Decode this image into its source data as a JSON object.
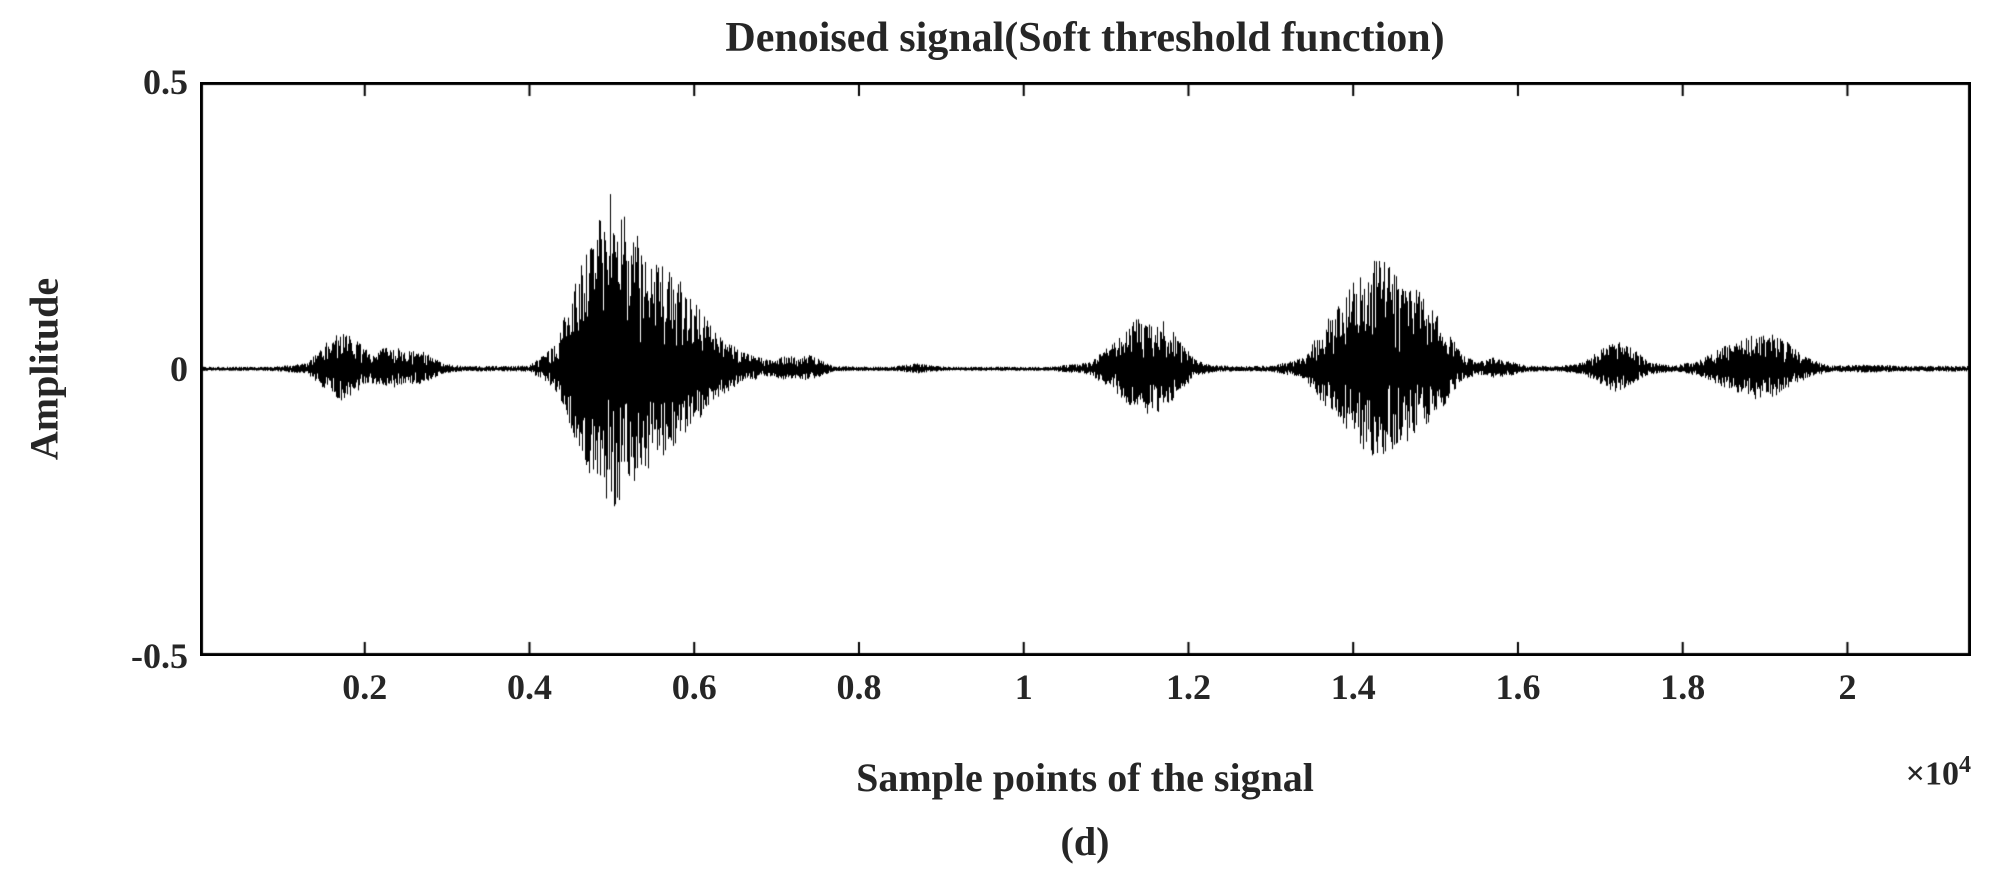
{
  "chart_data": {
    "type": "line",
    "title": "Denoised signal(Soft threshold function)",
    "xlabel": "Sample points of the signal",
    "ylabel": "Amplitude",
    "caption": "(d)",
    "x_scale": {
      "base": "×10",
      "exponent": "4"
    },
    "xlim": [
      0,
      21500
    ],
    "ylim": [
      -0.5,
      0.5
    ],
    "xticks": [
      2000,
      4000,
      6000,
      8000,
      10000,
      12000,
      14000,
      16000,
      18000,
      20000
    ],
    "xtick_labels": [
      "0.2",
      "0.4",
      "0.6",
      "0.8",
      "1",
      "1.2",
      "1.4",
      "1.6",
      "1.8",
      "2"
    ],
    "yticks": [
      0.5,
      0,
      -0.5
    ],
    "ytick_labels": [
      "0.5",
      "0",
      "-0.5"
    ],
    "grid": false,
    "colors": {
      "line": "#000000",
      "axis": "#000000",
      "text": "#262626",
      "background": "#ffffff"
    },
    "series": [
      {
        "name": "denoised-signal",
        "neg_scale": 0.82,
        "envelope_x": [
          0,
          800,
          1300,
          1450,
          1600,
          1750,
          1900,
          2050,
          2200,
          2350,
          2500,
          2650,
          2800,
          2950,
          3200,
          4000,
          4300,
          4400,
          4500,
          4600,
          4700,
          4800,
          4900,
          5000,
          5100,
          5200,
          5300,
          5400,
          5500,
          5600,
          5700,
          5800,
          5900,
          6000,
          6100,
          6200,
          6300,
          6400,
          6500,
          6600,
          6700,
          6800,
          6950,
          7100,
          7250,
          7400,
          7550,
          7700,
          8400,
          8700,
          8900,
          9100,
          10300,
          10800,
          11100,
          11300,
          11500,
          11700,
          11900,
          12100,
          12300,
          12600,
          13000,
          13400,
          13700,
          13900,
          14100,
          14300,
          14500,
          14700,
          14900,
          15100,
          15300,
          15500,
          15700,
          15900,
          16100,
          16500,
          16800,
          17000,
          17200,
          17400,
          17600,
          17900,
          18200,
          18500,
          18700,
          18900,
          19100,
          19300,
          19500,
          19800,
          20300,
          20800,
          21300,
          21800
        ],
        "envelope_amp": [
          0.004,
          0.004,
          0.01,
          0.035,
          0.055,
          0.07,
          0.05,
          0.03,
          0.035,
          0.04,
          0.03,
          0.035,
          0.025,
          0.01,
          0.005,
          0.006,
          0.04,
          0.08,
          0.13,
          0.17,
          0.21,
          0.25,
          0.28,
          0.31,
          0.28,
          0.26,
          0.24,
          0.22,
          0.21,
          0.19,
          0.17,
          0.16,
          0.14,
          0.12,
          0.1,
          0.08,
          0.06,
          0.05,
          0.04,
          0.03,
          0.025,
          0.02,
          0.015,
          0.025,
          0.02,
          0.025,
          0.015,
          0.005,
          0.004,
          0.01,
          0.006,
          0.004,
          0.004,
          0.012,
          0.05,
          0.08,
          0.1,
          0.09,
          0.05,
          0.015,
          0.007,
          0.005,
          0.006,
          0.02,
          0.09,
          0.13,
          0.17,
          0.2,
          0.17,
          0.15,
          0.12,
          0.08,
          0.03,
          0.012,
          0.02,
          0.015,
          0.006,
          0.005,
          0.012,
          0.035,
          0.05,
          0.035,
          0.012,
          0.006,
          0.015,
          0.04,
          0.055,
          0.065,
          0.06,
          0.045,
          0.02,
          0.006,
          0.008,
          0.005,
          0.006,
          0.004
        ]
      }
    ]
  }
}
